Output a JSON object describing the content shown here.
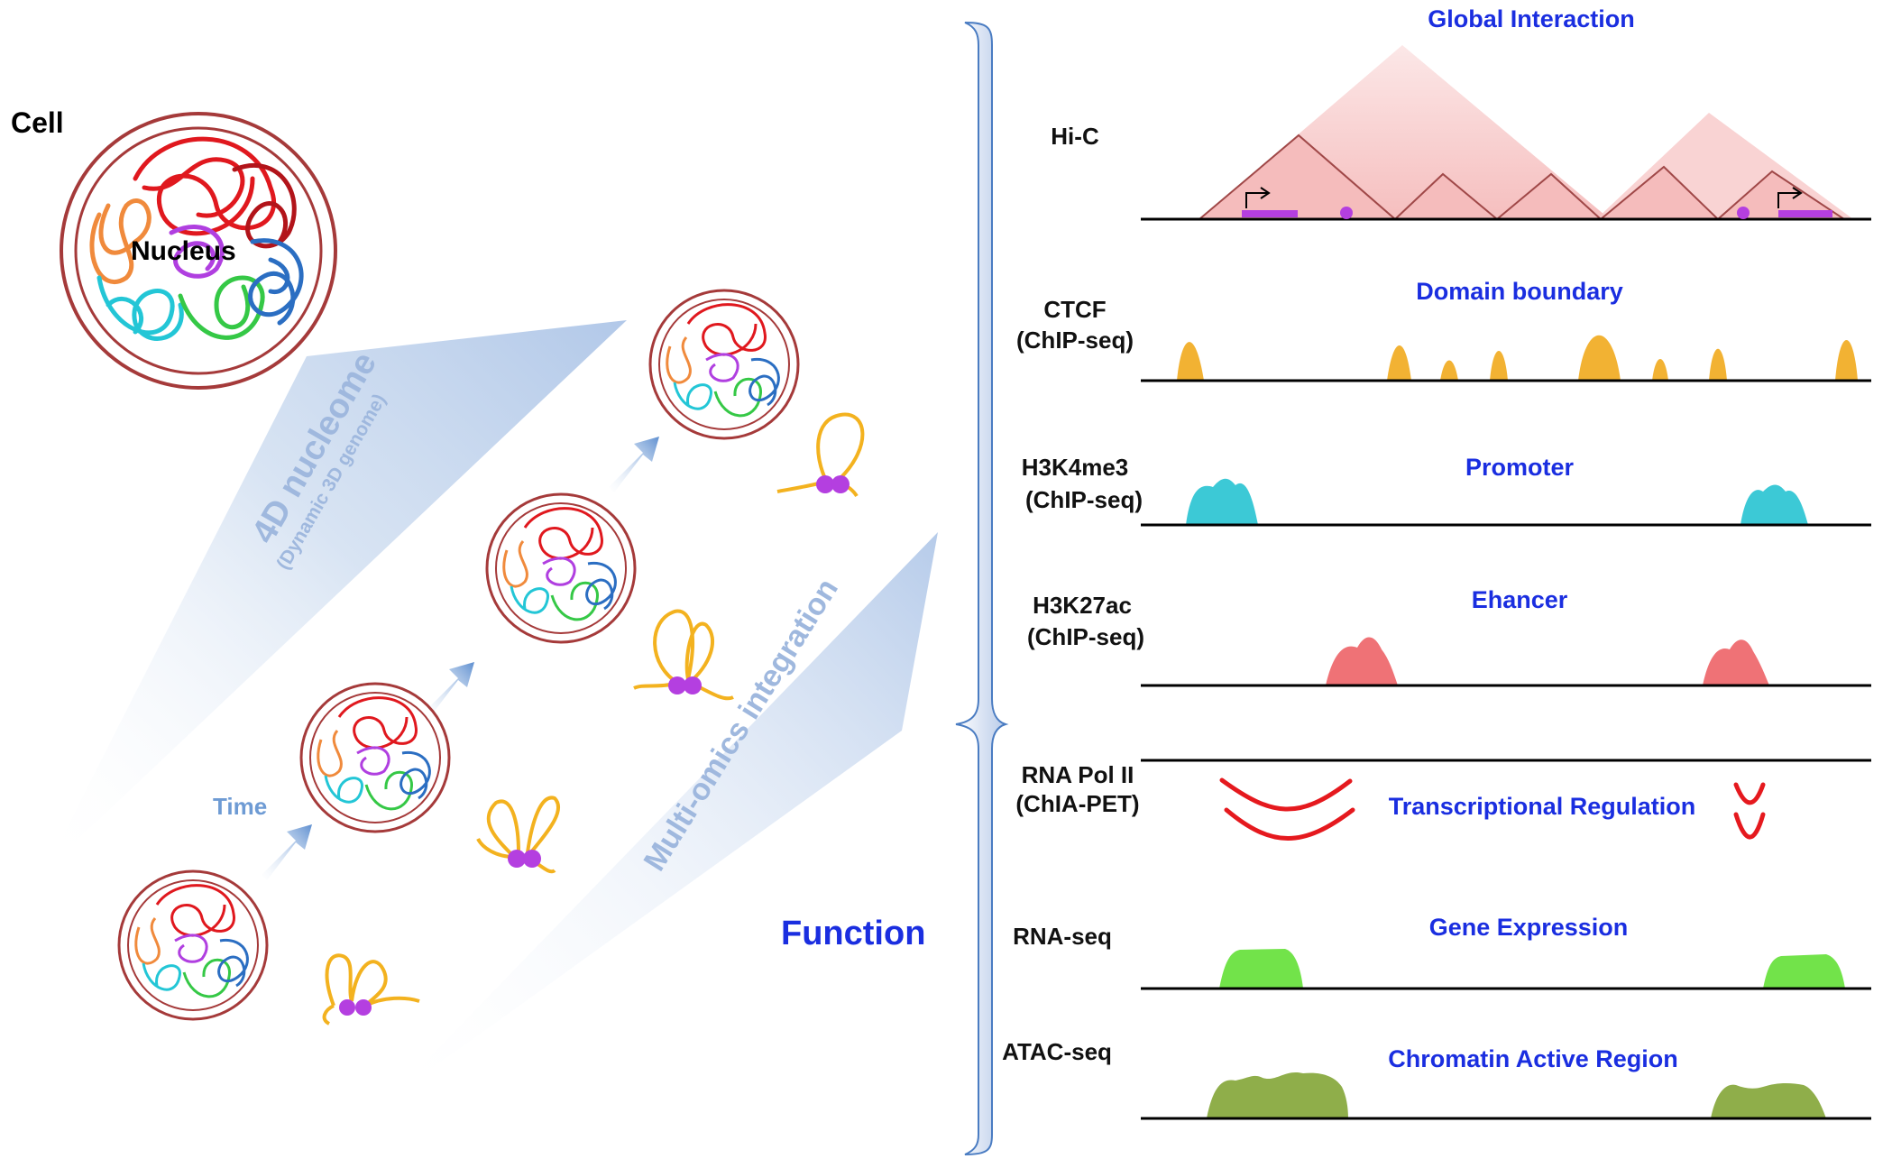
{
  "left": {
    "cell_label": "Cell",
    "nucleus_label": "Nucleus",
    "nucleome_title": "4D nucleome",
    "nucleome_subtitle": "(Dynamic 3D genome)",
    "time_label": "Time",
    "multiomics_label": "Multi-omics integration",
    "function_label": "Function"
  },
  "tracks": [
    {
      "label_lines": [
        "Hi-C"
      ],
      "title": "Global Interaction"
    },
    {
      "label_lines": [
        "CTCF",
        "(ChIP-seq)"
      ],
      "title": "Domain boundary"
    },
    {
      "label_lines": [
        "H3K4me3",
        "(ChIP-seq)"
      ],
      "title": "Promoter"
    },
    {
      "label_lines": [
        "H3K27ac",
        "(ChIP-seq)"
      ],
      "title": "Ehancer"
    },
    {
      "label_lines": [
        "RNA Pol II",
        "(ChIA-PET)"
      ],
      "title": "Transcriptional Regulation"
    },
    {
      "label_lines": [
        "RNA-seq"
      ],
      "title": "Gene Expression"
    },
    {
      "label_lines": [
        "ATAC-seq"
      ],
      "title": "Chromatin Active Region"
    }
  ],
  "colors": {
    "ctcf": "#f2b233",
    "h3k4me3": "#3cc9d6",
    "h3k27ac": "#ef7276",
    "polii": "#e5191e",
    "rnaseq": "#72e34a",
    "atac": "#8fae4a",
    "hic": "#f19a9a",
    "title": "#1a2ee0",
    "magenta": "#b43fe0"
  }
}
